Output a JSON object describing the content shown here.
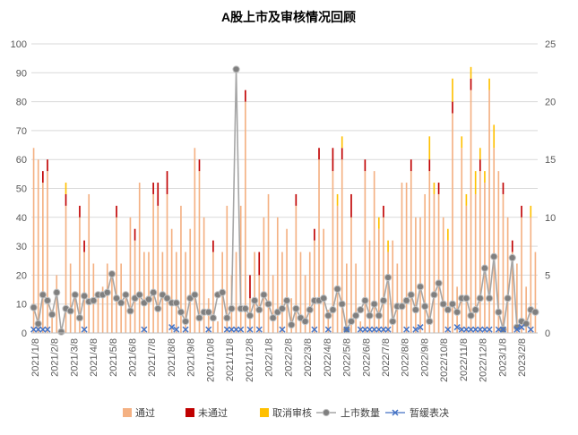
{
  "chart_data": {
    "type": "bar+line",
    "title": "A股上市及审核情况回顾",
    "legend_position": "bottom",
    "grid": true,
    "left_axis": {
      "min": 0,
      "max": 100,
      "ticks": [
        0,
        10,
        20,
        30,
        40,
        50,
        60,
        70,
        80,
        90,
        100
      ]
    },
    "right_axis": {
      "min": 0,
      "max": 25,
      "ticks": [
        0,
        5,
        10,
        15,
        20,
        25
      ]
    },
    "x_tick_labels": [
      "2021/1/8",
      "2021/2/8",
      "2021/3/8",
      "2021/4/8",
      "2021/5/8",
      "2021/6/8",
      "2021/7/8",
      "2021/8/8",
      "2021/9/8",
      "2021/10/8",
      "2021/11/8",
      "2021/12/8",
      "2022/1/8",
      "2022/2/8",
      "2022/3/8",
      "2022/4/8",
      "2022/5/8",
      "2022/6/8",
      "2022/7/8",
      "2022/8/8",
      "2022/9/8",
      "2022/10/8",
      "2022/11/8",
      "2022/12/8",
      "2023/1/8",
      "2023/2/8"
    ],
    "series": [
      {
        "name": "通过",
        "type": "bar",
        "axis": "left",
        "color": "#F4B183",
        "values": [
          64,
          60,
          52,
          56,
          8,
          20,
          0,
          44,
          24,
          12,
          40,
          28,
          48,
          24,
          12,
          16,
          24,
          20,
          40,
          24,
          12,
          40,
          32,
          52,
          28,
          28,
          48,
          44,
          28,
          48,
          36,
          28,
          44,
          28,
          36,
          64,
          56,
          40,
          12,
          28,
          4,
          28,
          44,
          20,
          28,
          44,
          80,
          12,
          28,
          20,
          40,
          48,
          20,
          40,
          28,
          36,
          12,
          44,
          28,
          20,
          28,
          32,
          60,
          36,
          8,
          56,
          44,
          60,
          24,
          40,
          24,
          4,
          56,
          32,
          56,
          36,
          40,
          28,
          32,
          24,
          52,
          52,
          56,
          40,
          40,
          48,
          56,
          48,
          48,
          40,
          32,
          76,
          16,
          64,
          44,
          84,
          48,
          56,
          52,
          84,
          64,
          56,
          48,
          40,
          28,
          24,
          40,
          16,
          40,
          28
        ]
      },
      {
        "name": "未通过",
        "type": "bar",
        "axis": "left",
        "color": "#C00000",
        "values": [
          0,
          0,
          4,
          4,
          0,
          0,
          0,
          4,
          0,
          0,
          4,
          4,
          0,
          0,
          0,
          0,
          0,
          0,
          4,
          0,
          0,
          0,
          4,
          0,
          0,
          0,
          4,
          8,
          0,
          8,
          0,
          0,
          0,
          0,
          0,
          0,
          4,
          0,
          0,
          4,
          0,
          0,
          0,
          0,
          0,
          0,
          4,
          8,
          0,
          8,
          0,
          0,
          0,
          0,
          0,
          0,
          0,
          4,
          0,
          0,
          0,
          4,
          4,
          0,
          0,
          8,
          0,
          4,
          0,
          8,
          0,
          0,
          4,
          0,
          0,
          0,
          4,
          0,
          0,
          0,
          0,
          0,
          4,
          0,
          0,
          0,
          4,
          0,
          4,
          0,
          0,
          4,
          0,
          0,
          0,
          4,
          0,
          4,
          0,
          0,
          0,
          0,
          4,
          0,
          4,
          0,
          4,
          0,
          0,
          0
        ]
      },
      {
        "name": "取消审核",
        "type": "bar",
        "axis": "left",
        "color": "#FFC000",
        "values": [
          0,
          0,
          0,
          0,
          0,
          0,
          0,
          4,
          0,
          0,
          0,
          0,
          0,
          0,
          0,
          0,
          0,
          0,
          0,
          0,
          0,
          0,
          0,
          0,
          0,
          0,
          0,
          0,
          0,
          0,
          0,
          0,
          0,
          0,
          0,
          0,
          0,
          0,
          0,
          0,
          0,
          0,
          0,
          0,
          0,
          0,
          0,
          0,
          0,
          0,
          0,
          0,
          0,
          0,
          0,
          0,
          0,
          0,
          0,
          0,
          0,
          0,
          0,
          0,
          0,
          0,
          4,
          4,
          0,
          0,
          0,
          0,
          0,
          0,
          0,
          4,
          0,
          4,
          0,
          0,
          0,
          0,
          0,
          0,
          0,
          0,
          8,
          4,
          0,
          0,
          4,
          8,
          0,
          4,
          4,
          4,
          8,
          4,
          4,
          4,
          8,
          0,
          0,
          0,
          0,
          0,
          0,
          0,
          4,
          0
        ]
      },
      {
        "name": "上市数量",
        "type": "line",
        "axis": "right",
        "color": "#A6A6A6",
        "values": [
          2.2,
          0.8,
          3.3,
          2.8,
          1.6,
          3.5,
          0.1,
          2.1,
          1.9,
          3.3,
          1.3,
          3.2,
          2.7,
          2.8,
          3.3,
          3.3,
          3.5,
          5.1,
          3.0,
          2.6,
          3.3,
          1.9,
          3.0,
          3.3,
          2.6,
          2.9,
          3.5,
          2.1,
          3.3,
          3.0,
          2.6,
          2.6,
          1.8,
          1.0,
          3.0,
          3.3,
          1.3,
          1.8,
          1.8,
          1.3,
          3.3,
          3.5,
          1.3,
          2.1,
          22.8,
          2.1,
          2.1,
          1.5,
          2.8,
          2.0,
          3.3,
          2.5,
          1.3,
          1.8,
          2.1,
          2.8,
          0.7,
          2.1,
          1.3,
          1.0,
          2.0,
          2.8,
          2.8,
          3.0,
          1.5,
          2.0,
          3.8,
          2.5,
          0.3,
          1.0,
          1.5,
          2.0,
          2.8,
          1.5,
          2.5,
          1.5,
          2.8,
          4.8,
          1.0,
          2.3,
          2.3,
          2.8,
          3.3,
          2.0,
          4.0,
          2.3,
          1.0,
          3.3,
          4.3,
          2.5,
          2.0,
          2.5,
          1.8,
          3.0,
          3.0,
          1.5,
          2.0,
          3.0,
          5.6,
          3.0,
          6.6,
          1.8,
          0.3,
          3.0,
          6.5,
          0.5,
          1.0,
          0.8,
          2.0,
          1.8
        ]
      },
      {
        "name": "暂缓表决",
        "type": "scatter",
        "axis": "right",
        "color": "#4472C4",
        "values": [
          0.3,
          0.3,
          0.3,
          0.3,
          0,
          0,
          0,
          0,
          0,
          0,
          0,
          0.3,
          0,
          0,
          0,
          0,
          0,
          0,
          0,
          0,
          0,
          0,
          0,
          0,
          0.3,
          0,
          0,
          0,
          0,
          0,
          0.5,
          0.3,
          0,
          0.3,
          0,
          0,
          0,
          0,
          0.3,
          0,
          0,
          0,
          0.3,
          0.3,
          0.3,
          0.3,
          0,
          0.3,
          0,
          0.3,
          0,
          0,
          0,
          0,
          0.3,
          0,
          0,
          0,
          0,
          0,
          0,
          0.3,
          0,
          0,
          0.3,
          0,
          0,
          0,
          0.3,
          0,
          0,
          0.3,
          0.3,
          0.3,
          0.3,
          0.3,
          0.3,
          0.3,
          0,
          0,
          0,
          0.3,
          0,
          0.3,
          0.5,
          0,
          0,
          0,
          0,
          0,
          0.3,
          0,
          0.5,
          0.3,
          0.3,
          0.3,
          0.3,
          0.3,
          0.3,
          0.3,
          0,
          0.3,
          0.3,
          0,
          0,
          0.3,
          0.5,
          0,
          0.3,
          0
        ]
      }
    ]
  }
}
